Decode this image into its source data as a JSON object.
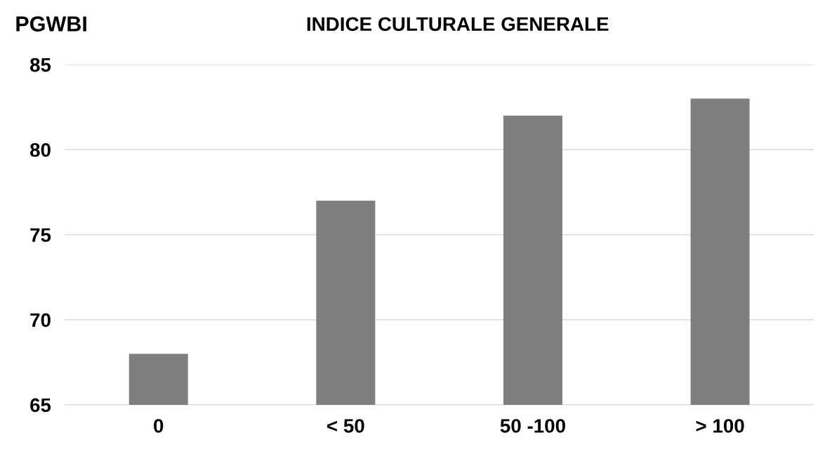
{
  "chart_data": {
    "type": "bar",
    "title": "INDICE CULTURALE GENERALE",
    "ylabel": "PGWBI",
    "categories": [
      "0",
      "< 50",
      "50 -100",
      "> 100"
    ],
    "values": [
      68,
      77,
      82,
      83
    ],
    "color": "#7f7f7f",
    "ylim": [
      65,
      85
    ],
    "yticks": [
      65,
      70,
      75,
      80,
      85
    ],
    "grid": "y"
  }
}
